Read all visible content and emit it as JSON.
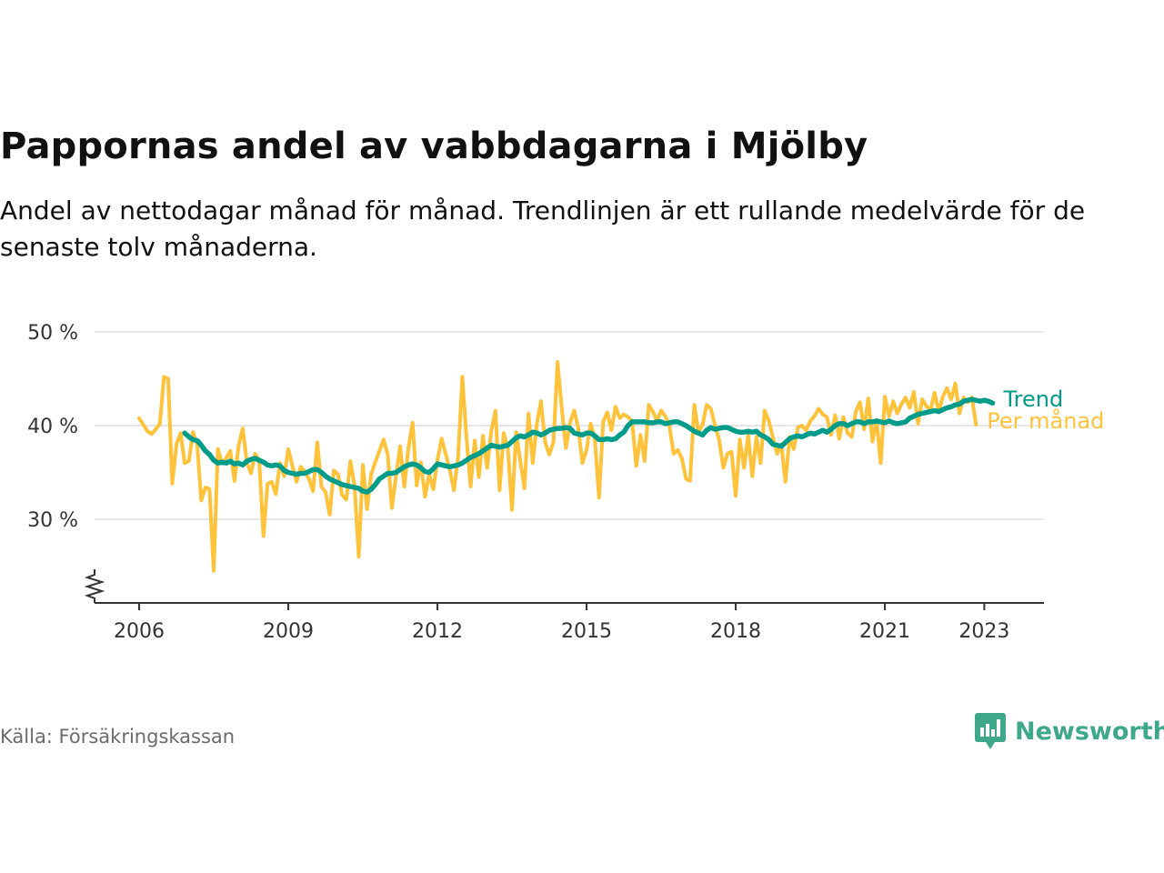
{
  "title": "Pappornas andel av vabbdagarna i Mjölby",
  "subtitle": "Andel av nettodagar månad för månad. Trendlinjen är ett rullande medelvärde för de senaste tolv månaderna.",
  "source": "Källa: Försäkringskassan",
  "brand": "Newsworthy",
  "colors": {
    "monthly": "#FFC23B",
    "trend": "#009C8A",
    "brand": "#3FA88A",
    "grid": "#DDDDDD",
    "axis": "#333333"
  },
  "chart_data": {
    "type": "line",
    "title": "Pappornas andel av vabbdagarna i Mjölby",
    "ylim": [
      22.5,
      50
    ],
    "y_ticks": [
      30,
      40,
      50
    ],
    "y_tick_labels": [
      "30 %",
      "40 %",
      "50 %"
    ],
    "x_ticks": [
      2006,
      2009,
      2012,
      2015,
      2018,
      2021,
      2023
    ],
    "x_tick_labels": [
      "2006",
      "2009",
      "2012",
      "2015",
      "2018",
      "2021",
      "2023"
    ],
    "axis_break": true,
    "legend": "inline-right",
    "series": [
      {
        "name": "Per månad",
        "color": "#FFC23B",
        "x_start": "2006-01",
        "values": [
          40.8,
          40.1,
          39.4,
          39.1,
          39.6,
          40.2,
          45.2,
          45.0,
          33.8,
          38.0,
          39.2,
          36.0,
          36.2,
          39.3,
          38.0,
          32.0,
          33.4,
          33.2,
          24.5,
          37.5,
          36.0,
          36.5,
          37.3,
          34.1,
          37.8,
          39.7,
          36.1,
          34.9,
          37.0,
          36.2,
          28.2,
          33.8,
          34.0,
          32.7,
          36.0,
          34.6,
          37.5,
          35.7,
          34.0,
          35.6,
          35.1,
          34.3,
          33.0,
          38.2,
          33.5,
          32.9,
          30.5,
          35.2,
          34.8,
          32.6,
          32.1,
          36.2,
          33.6,
          26.0,
          35.8,
          31.1,
          34.8,
          36.1,
          37.3,
          38.5,
          36.9,
          31.2,
          34.6,
          37.8,
          33.5,
          37.6,
          40.3,
          33.6,
          36.1,
          32.4,
          34.8,
          33.2,
          36.3,
          38.6,
          37.0,
          35.2,
          33.1,
          36.7,
          45.2,
          38.8,
          33.5,
          38.4,
          34.5,
          38.9,
          35.5,
          39.4,
          41.6,
          33.1,
          39.2,
          37.5,
          31.0,
          39.3,
          36.2,
          33.3,
          41.3,
          36.0,
          40.2,
          42.6,
          38.2,
          36.9,
          38.2,
          46.8,
          41.9,
          37.6,
          40.3,
          41.6,
          39.7,
          36.0,
          37.4,
          40.2,
          38.6,
          32.3,
          40.4,
          41.4,
          39.5,
          42.0,
          40.8,
          41.2,
          40.9,
          40.5,
          35.7,
          39.0,
          36.2,
          42.2,
          41.5,
          40.5,
          41.6,
          41.0,
          40.0,
          37.0,
          37.4,
          36.5,
          34.3,
          34.1,
          42.2,
          39.3,
          40.1,
          42.2,
          41.8,
          40.0,
          38.5,
          35.5,
          37.0,
          37.2,
          32.5,
          38.5,
          35.5,
          39.0,
          34.6,
          38.8,
          36.0,
          41.6,
          40.5,
          38.7,
          37.0,
          38.0,
          34.0,
          38.8,
          37.5,
          39.8,
          40.0,
          39.5,
          40.5,
          41.0,
          41.8,
          41.2,
          40.9,
          39.0,
          41.1,
          38.6,
          40.9,
          39.2,
          38.8,
          41.5,
          42.5,
          39.6,
          42.9,
          38.3,
          40.6,
          36.0,
          43.1,
          41.0,
          42.6,
          41.3,
          42.3,
          43.0,
          41.9,
          43.6,
          40.2,
          42.8,
          42.1,
          41.6,
          43.5,
          41.5,
          43.1,
          44.0,
          42.8,
          44.5,
          41.3,
          43.0,
          42.5,
          43.0,
          40.1
        ]
      },
      {
        "name": "Trend",
        "color": "#009C8A",
        "x_start": "2006-12",
        "values": [
          39.2,
          38.8,
          38.5,
          38.4,
          37.9,
          37.3,
          36.9,
          36.3,
          36.0,
          36.1,
          36.0,
          36.2,
          35.9,
          36.0,
          35.8,
          36.2,
          36.4,
          36.5,
          36.3,
          36.1,
          35.8,
          35.7,
          35.8,
          35.7,
          35.2,
          35.0,
          34.9,
          34.8,
          34.9,
          34.9,
          35.1,
          35.3,
          35.3,
          35.0,
          34.6,
          34.3,
          34.1,
          33.9,
          33.7,
          33.6,
          33.5,
          33.4,
          33.3,
          33.0,
          32.9,
          33.2,
          33.7,
          34.3,
          34.6,
          34.9,
          34.9,
          35.0,
          35.3,
          35.6,
          35.8,
          35.9,
          35.8,
          35.5,
          35.1,
          35.0,
          35.4,
          35.9,
          35.8,
          35.7,
          35.6,
          35.7,
          35.8,
          36.0,
          36.3,
          36.6,
          36.8,
          37.0,
          37.3,
          37.6,
          37.9,
          37.8,
          37.7,
          37.8,
          37.9,
          38.3,
          38.7,
          38.9,
          38.8,
          39.0,
          39.3,
          39.2,
          39.0,
          39.2,
          39.5,
          39.6,
          39.7,
          39.7,
          39.8,
          39.7,
          39.2,
          39.1,
          39.0,
          39.2,
          39.2,
          38.9,
          38.5,
          38.5,
          38.6,
          38.5,
          38.6,
          39.0,
          39.3,
          40.0,
          40.4,
          40.4,
          40.4,
          40.4,
          40.3,
          40.3,
          40.4,
          40.4,
          40.2,
          40.3,
          40.4,
          40.4,
          40.2,
          40.0,
          39.7,
          39.4,
          39.2,
          39.0,
          39.5,
          39.8,
          39.6,
          39.7,
          39.8,
          39.8,
          39.6,
          39.4,
          39.3,
          39.3,
          39.4,
          39.3,
          39.4,
          39.0,
          38.8,
          38.5,
          38.0,
          37.9,
          37.8,
          38.2,
          38.6,
          38.8,
          38.9,
          38.8,
          39.0,
          39.2,
          39.1,
          39.3,
          39.5,
          39.3,
          39.6,
          40.0,
          40.2,
          40.2,
          40.0,
          40.2,
          40.4,
          40.4,
          40.2,
          40.4,
          40.4,
          40.5,
          40.4,
          40.3,
          40.5,
          40.3,
          40.2,
          40.3,
          40.4,
          40.8,
          41.0,
          41.2,
          41.3,
          41.4,
          41.5,
          41.6,
          41.5,
          41.7,
          41.9,
          42.0,
          42.2,
          42.3,
          42.6,
          42.7,
          42.8,
          42.7,
          42.6,
          42.7,
          42.6,
          42.4
        ]
      }
    ]
  }
}
